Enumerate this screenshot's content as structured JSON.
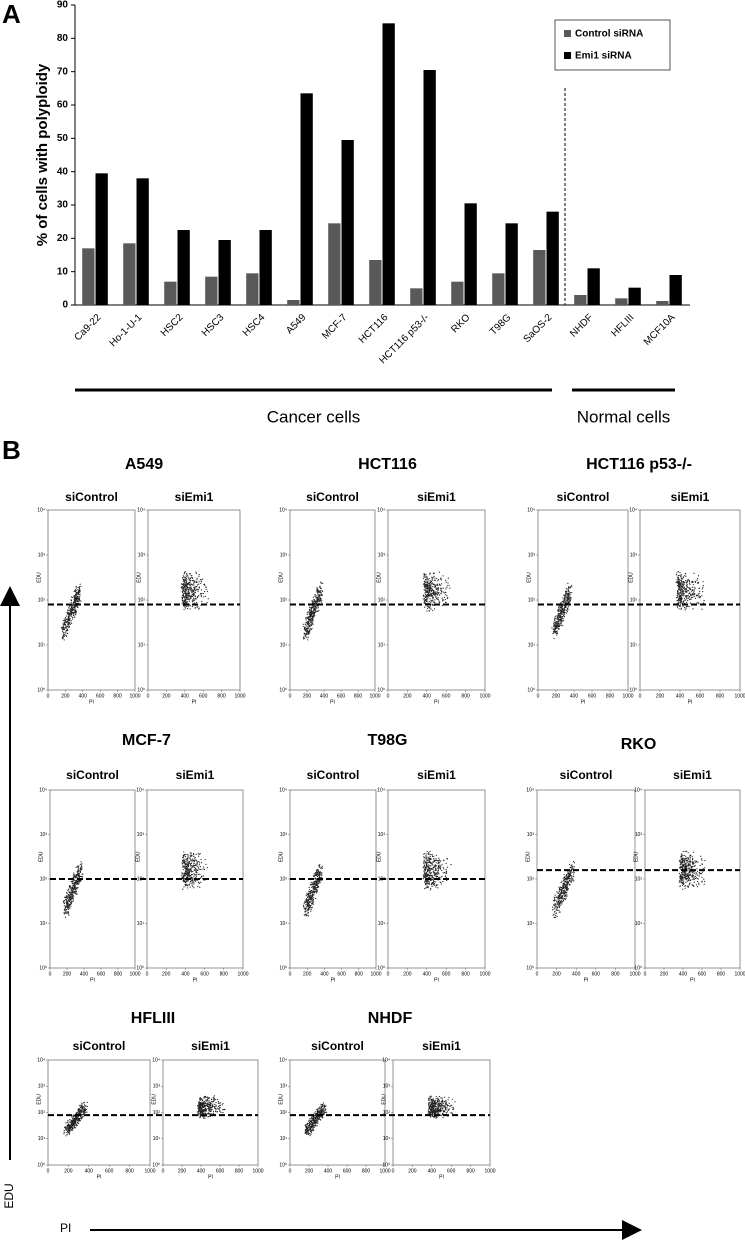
{
  "chart_data": [
    {
      "type": "bar",
      "panel_label": "A",
      "y_axis_label": "% of cells with polyploidy",
      "categories": [
        "Ca9-22",
        "Ho-1-U-1",
        "HSC2",
        "HSC3",
        "HSC4",
        "A549",
        "MCF-7",
        "HCT116",
        "HCT116 p53-/-",
        "RKO",
        "T98G",
        "SaOS-2",
        "NHDF",
        "HFLIII",
        "MCF10A"
      ],
      "series": [
        {
          "name": "Control siRNA",
          "color": "#595959",
          "values": [
            17,
            18.5,
            7,
            8.5,
            9.5,
            1.5,
            24.5,
            13.5,
            5,
            7,
            9.5,
            16.5,
            3,
            2,
            1.2
          ]
        },
        {
          "name": "Emi1 siRNA",
          "color": "#000000",
          "values": [
            39.5,
            38,
            22.5,
            19.5,
            22.5,
            63.5,
            49.5,
            84.5,
            70.5,
            30.5,
            24.5,
            28,
            11,
            5.2,
            9
          ]
        }
      ],
      "ylim": [
        0,
        90
      ],
      "yticks": [
        0,
        10,
        20,
        30,
        40,
        50,
        60,
        70,
        80,
        90
      ],
      "groups": [
        {
          "label": "Cancer cells",
          "from": 0,
          "to": 11
        },
        {
          "label": "Normal cells",
          "from": 12,
          "to": 14
        }
      ]
    }
  ],
  "panel_b": {
    "panel_label": "B",
    "y_axis_label": "EDU",
    "x_axis_label": "PI",
    "plot_y_label": "EDU",
    "plot_x_label": "PI",
    "xticks": [
      0,
      200,
      400,
      600,
      800,
      1000
    ],
    "yticks": [
      {
        "value": 0,
        "label": "10⁰"
      },
      {
        "value": 1,
        "label": "10¹"
      },
      {
        "value": 2,
        "label": "10²"
      },
      {
        "value": 3,
        "label": "10³"
      },
      {
        "value": 4,
        "label": "10⁴"
      }
    ],
    "ylim": [
      0,
      4
    ],
    "xlim": [
      0,
      1000
    ],
    "groups": [
      {
        "title": "A549",
        "plot_labels": [
          "siControl",
          "siEmi1"
        ],
        "threshold": 1.9
      },
      {
        "title": "HCT116",
        "plot_labels": [
          "siControl",
          "siEmi1"
        ],
        "threshold": 1.9
      },
      {
        "title": "HCT116 p53-/-",
        "plot_labels": [
          "siControl",
          "siEmi1"
        ],
        "threshold": 1.9
      },
      {
        "title": "MCF-7",
        "plot_labels": [
          "siControl",
          "siEmi1"
        ],
        "threshold": 2
      },
      {
        "title": "T98G",
        "plot_labels": [
          "siControl",
          "siEmi1"
        ],
        "threshold": 2
      },
      {
        "title": "RKO",
        "plot_labels": [
          "siControl",
          "siEmi1"
        ],
        "threshold": 2.2
      },
      {
        "title": "HFLIII",
        "plot_labels": [
          "siControl",
          "siEmi1"
        ],
        "threshold": 1.9
      },
      {
        "title": "NHDF",
        "plot_labels": [
          "siControl",
          "siEmi1"
        ],
        "threshold": 1.9
      }
    ]
  }
}
